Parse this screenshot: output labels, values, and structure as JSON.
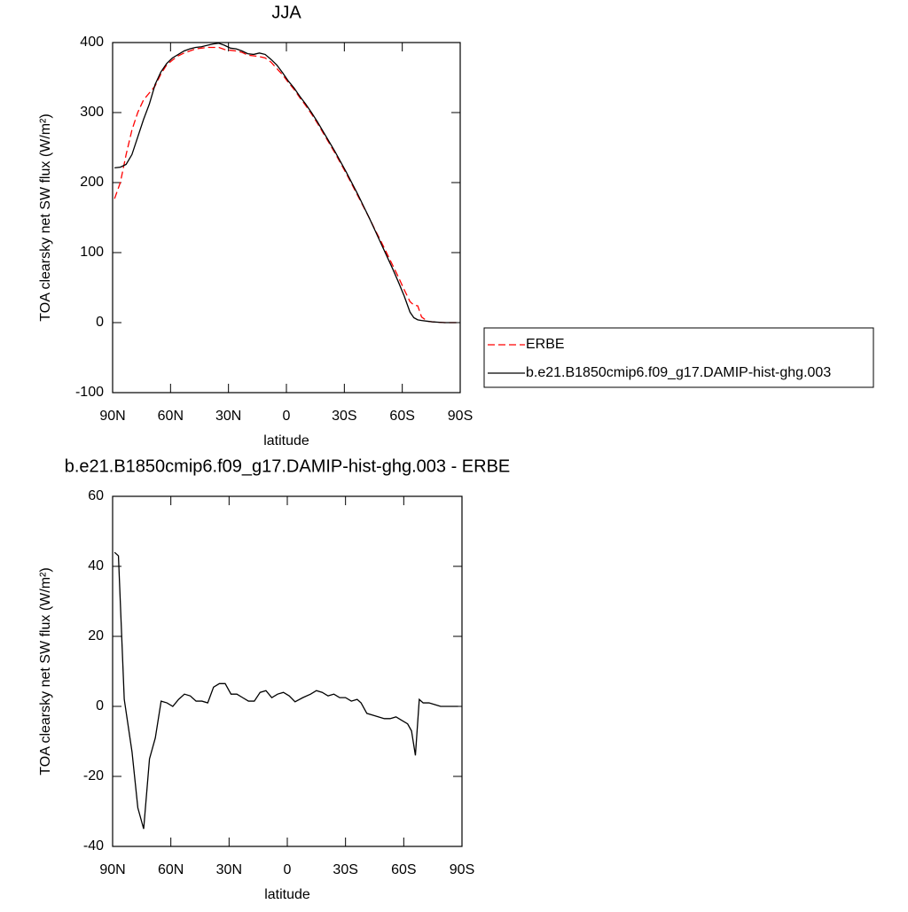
{
  "chart_data": [
    {
      "type": "line",
      "title": "JJA",
      "xlabel": "latitude",
      "ylabel": "TOA clearsky net SW flux (W/m²)",
      "xlim": [
        90,
        -90
      ],
      "ylim": [
        -100,
        400
      ],
      "xticks": [
        {
          "value": 90,
          "label": "90N"
        },
        {
          "value": 60,
          "label": "60N"
        },
        {
          "value": 30,
          "label": "30N"
        },
        0,
        {
          "value": -30,
          "label": "30S"
        },
        {
          "value": -60,
          "label": "60S"
        },
        {
          "value": -90,
          "label": "90S"
        }
      ],
      "yticks": [
        -100,
        0,
        100,
        200,
        300,
        400
      ],
      "x": [
        89,
        86,
        83,
        80,
        77,
        74,
        71,
        68,
        65,
        62,
        59,
        56,
        53,
        50,
        47,
        44,
        41,
        38,
        35,
        32,
        29,
        26,
        23,
        20,
        17,
        14,
        11,
        8,
        5,
        2,
        -1,
        -4,
        -7,
        -10,
        -13,
        -16,
        -19,
        -22,
        -25,
        -28,
        -31,
        -34,
        -37,
        -40,
        -43,
        -46,
        -49,
        -52,
        -55,
        -58,
        -61,
        -64,
        -66,
        -68,
        -70,
        -73,
        -76,
        -79,
        -82,
        -85,
        -88
      ],
      "series": [
        {
          "name": "ERBE",
          "color": "#ff0000",
          "dashed": true,
          "values": [
            177,
            200,
            240,
            275,
            300,
            318,
            328,
            338,
            355,
            368,
            375,
            381,
            385,
            388,
            391,
            392,
            393,
            393,
            393,
            390,
            389,
            388,
            386,
            382,
            381,
            380,
            378,
            372,
            363,
            354,
            343,
            333,
            321,
            310,
            298,
            285,
            271,
            257,
            243,
            228,
            213,
            197,
            181,
            165,
            149,
            132,
            116,
            99,
            82,
            65,
            47,
            30,
            25,
            24,
            8,
            2,
            1,
            0.5,
            0,
            0,
            0
          ]
        },
        {
          "name": "b.e21.B1850cmip6.f09_g17.DAMIP-hist-ghg.003",
          "color": "#000000",
          "dashed": false,
          "values": [
            221,
            222,
            226,
            240,
            265,
            290,
            312,
            340,
            358,
            370,
            378,
            383,
            388,
            391,
            393,
            394,
            396,
            398,
            399,
            396,
            392,
            391,
            388,
            384,
            383,
            385,
            383,
            376,
            368,
            357,
            345,
            335,
            323,
            312,
            300,
            287,
            273,
            259,
            245,
            230,
            215,
            199,
            183,
            166,
            149,
            131,
            113,
            95,
            77,
            58,
            38,
            15,
            7,
            4,
            3,
            2,
            1,
            0.5,
            0,
            0,
            0
          ]
        }
      ]
    },
    {
      "type": "line",
      "title": "b.e21.B1850cmip6.f09_g17.DAMIP-hist-ghg.003 - ERBE",
      "xlabel": "latitude",
      "ylabel": "TOA clearsky net SW flux (W/m²)",
      "xlim": [
        90,
        -90
      ],
      "ylim": [
        -40,
        60
      ],
      "xticks": [
        {
          "value": 90,
          "label": "90N"
        },
        {
          "value": 60,
          "label": "60N"
        },
        {
          "value": 30,
          "label": "30N"
        },
        0,
        {
          "value": -30,
          "label": "30S"
        },
        {
          "value": -60,
          "label": "60S"
        },
        {
          "value": -90,
          "label": "90S"
        }
      ],
      "yticks": [
        -40,
        -20,
        0,
        20,
        40,
        60
      ],
      "x": [
        89,
        87,
        84,
        80,
        77,
        74,
        71,
        68,
        65,
        62,
        59,
        56,
        53,
        50,
        47,
        44,
        41,
        38,
        35,
        32,
        29,
        26,
        23,
        20,
        17,
        14,
        11,
        8,
        5,
        2,
        -1,
        -4,
        -8,
        -12,
        -15,
        -18,
        -21,
        -24,
        -27,
        -30,
        -33,
        -36,
        -38,
        -41,
        -44,
        -47,
        -50,
        -53,
        -56,
        -59,
        -62,
        -64,
        -66,
        -68,
        -70,
        -73,
        -76,
        -79,
        -82,
        -85,
        -88
      ],
      "series": [
        {
          "color": "#000000",
          "dashed": false,
          "values": [
            44,
            43,
            2,
            -13,
            -29,
            -35,
            -15,
            -9,
            1.5,
            1,
            0,
            2,
            3.5,
            3,
            1.5,
            1.5,
            1,
            5.5,
            6.5,
            6.5,
            3.5,
            3.5,
            2.5,
            1.5,
            1.5,
            4,
            4.5,
            2.5,
            3.5,
            4,
            3,
            1.3,
            2.5,
            3.5,
            4.5,
            4,
            3,
            3.5,
            2.5,
            2.5,
            1.5,
            2,
            1,
            -2,
            -2.5,
            -3,
            -3.5,
            -3.5,
            -3,
            -4,
            -5,
            -7,
            -14,
            2,
            1,
            1,
            0.5,
            0,
            0,
            0,
            0
          ]
        }
      ]
    }
  ]
}
